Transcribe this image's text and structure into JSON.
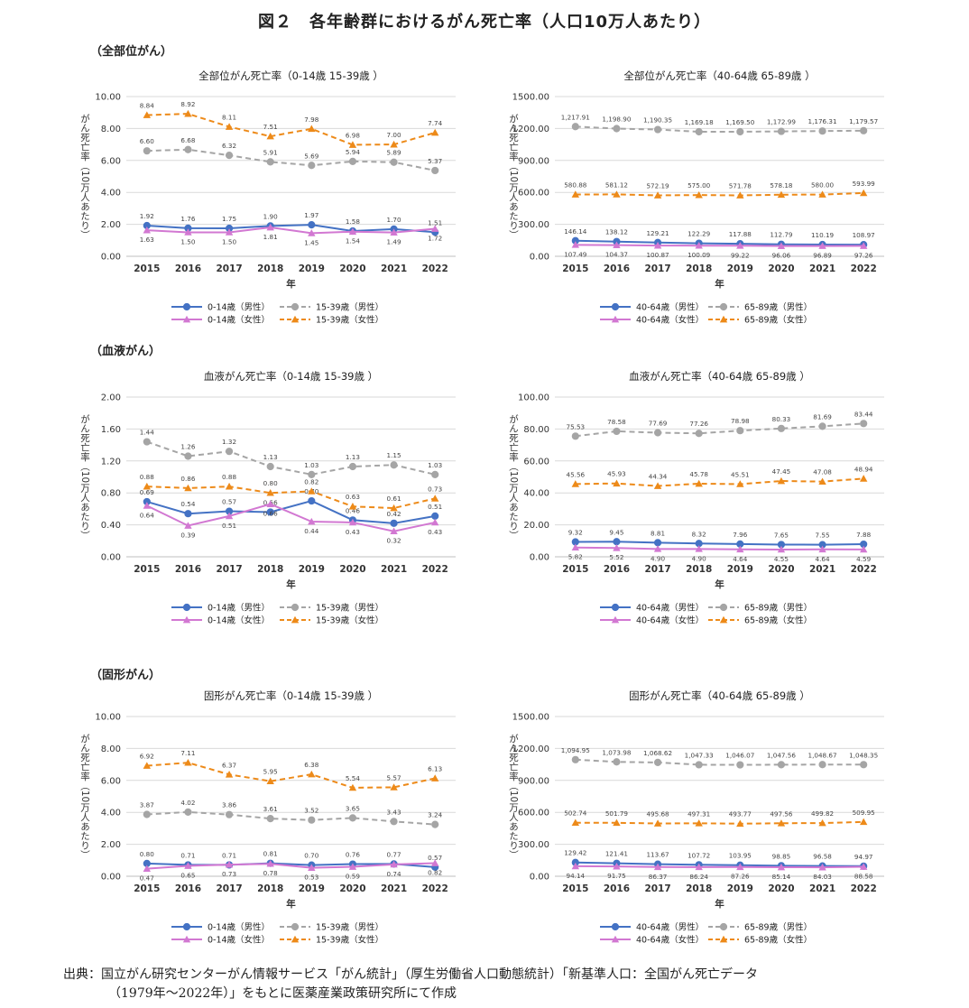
{
  "figure_title": "図２　各年齢群におけるがん死亡率（人口10万人あたり）",
  "sections": [
    "（全部位がん）",
    "（血液がん）",
    "（固形がん）"
  ],
  "source_line1": "出典：国立がん研究センターがん情報サービス「がん統計」（厚生労働省人口動態統計）「新基準人口：全国がん死亡データ",
  "source_line2": "（1979年～2022年）」をもとに医薬産業政策研究所にて作成",
  "chart_data": [
    {
      "type": "line",
      "title": "全部位がん死亡率（0-14歳 15-39歳 ）",
      "xlabel": "年",
      "ylabel": "がん死亡率（10万人あたり）",
      "categories": [
        "2015",
        "2016",
        "2017",
        "2018",
        "2019",
        "2020",
        "2021",
        "2022"
      ],
      "ylim": [
        0,
        10
      ],
      "yticks": [
        "0.00",
        "2.00",
        "4.00",
        "6.00",
        "8.00",
        "10.00"
      ],
      "series": [
        {
          "name": "0-14歳（男性）",
          "color": "#4472c4",
          "marker": "circle",
          "dashed": false,
          "values": [
            1.92,
            1.76,
            1.75,
            1.9,
            1.97,
            1.58,
            1.7,
            1.51
          ],
          "labels": [
            "1.92",
            "1.76",
            "1.75",
            "1.90",
            "1.97",
            "1.58",
            "1.70",
            "1.51"
          ]
        },
        {
          "name": "15-39歳（男性）",
          "color": "#a5a5a5",
          "marker": "circle",
          "dashed": true,
          "values": [
            6.6,
            6.68,
            6.32,
            5.91,
            5.69,
            5.94,
            5.89,
            5.37
          ],
          "labels": [
            "6.60",
            "6.68",
            "6.32",
            "5.91",
            "5.69",
            "5.94",
            "5.89",
            "5.37"
          ]
        },
        {
          "name": "0-14歳（女性）",
          "color": "#d278d2",
          "marker": "triangle",
          "dashed": false,
          "values": [
            1.63,
            1.5,
            1.5,
            1.81,
            1.45,
            1.54,
            1.49,
            1.72
          ],
          "labels": [
            "1.63",
            "1.50",
            "1.50",
            "1.81",
            "1.45",
            "1.54",
            "1.49",
            "1.72"
          ]
        },
        {
          "name": "15-39歳（女性）",
          "color": "#ed8a19",
          "marker": "triangle",
          "dashed": true,
          "values": [
            8.84,
            8.92,
            8.11,
            7.51,
            7.98,
            6.98,
            7.0,
            7.74
          ],
          "labels": [
            "8.84",
            "8.92",
            "8.11",
            "7.51",
            "7.98",
            "6.98",
            "7.00",
            "7.74"
          ]
        }
      ]
    },
    {
      "type": "line",
      "title": "全部位がん死亡率（40-64歳 65-89歳 ）",
      "xlabel": "年",
      "ylabel": "がん死亡率（10万人あたり）",
      "categories": [
        "2015",
        "2016",
        "2017",
        "2018",
        "2019",
        "2020",
        "2021",
        "2022"
      ],
      "ylim": [
        0,
        1500
      ],
      "yticks": [
        "0.00",
        "300.00",
        "600.00",
        "900.00",
        "1200.00",
        "1500.00"
      ],
      "series": [
        {
          "name": "40-64歳（男性）",
          "color": "#4472c4",
          "marker": "circle",
          "dashed": false,
          "values": [
            146.14,
            138.12,
            129.21,
            122.29,
            117.88,
            112.79,
            110.19,
            108.97
          ],
          "labels": [
            "146.14",
            "138.12",
            "129.21",
            "122.29",
            "117.88",
            "112.79",
            "110.19",
            "108.97"
          ]
        },
        {
          "name": "65-89歳（男性）",
          "color": "#a5a5a5",
          "marker": "circle",
          "dashed": true,
          "values": [
            1217.91,
            1198.9,
            1190.35,
            1169.18,
            1169.5,
            1172.99,
            1176.31,
            1179.57
          ],
          "labels": [
            "1,217.91",
            "1,198.90",
            "1,190.35",
            "1,169.18",
            "1,169.50",
            "1,172.99",
            "1,176.31",
            "1,179.57"
          ]
        },
        {
          "name": "40-64歳（女性）",
          "color": "#d278d2",
          "marker": "triangle",
          "dashed": false,
          "values": [
            107.49,
            104.37,
            100.87,
            100.09,
            99.22,
            96.06,
            96.89,
            97.26
          ],
          "labels": [
            "107.49",
            "104.37",
            "100.87",
            "100.09",
            "99.22",
            "96.06",
            "96.89",
            "97.26"
          ]
        },
        {
          "name": "65-89歳（女性）",
          "color": "#ed8a19",
          "marker": "triangle",
          "dashed": true,
          "values": [
            580.88,
            581.12,
            572.19,
            575.0,
            571.78,
            578.18,
            580.0,
            593.99
          ],
          "labels": [
            "580.88",
            "581.12",
            "572.19",
            "575.00",
            "571.78",
            "578.18",
            "580.00",
            "593.99"
          ]
        }
      ]
    },
    {
      "type": "line",
      "title": "血液がん死亡率（0-14歳 15-39歳 ）",
      "xlabel": "年",
      "ylabel": "がん死亡率（10万人あたり）",
      "categories": [
        "2015",
        "2016",
        "2017",
        "2018",
        "2019",
        "2020",
        "2021",
        "2022"
      ],
      "ylim": [
        0,
        2
      ],
      "yticks": [
        "0.00",
        "0.40",
        "0.80",
        "1.20",
        "1.60",
        "2.00"
      ],
      "series": [
        {
          "name": "0-14歳（男性）",
          "color": "#4472c4",
          "marker": "circle",
          "dashed": false,
          "values": [
            0.69,
            0.54,
            0.57,
            0.56,
            0.7,
            0.46,
            0.42,
            0.51
          ],
          "labels": [
            "0.69",
            "0.54",
            "0.57",
            "0.56",
            "0.70",
            "0.46",
            "0.42",
            "0.51"
          ]
        },
        {
          "name": "15-39歳（男性）",
          "color": "#a5a5a5",
          "marker": "circle",
          "dashed": true,
          "values": [
            1.44,
            1.26,
            1.32,
            1.13,
            1.03,
            1.13,
            1.15,
            1.03
          ],
          "labels": [
            "1.44",
            "1.26",
            "1.32",
            "1.13",
            "1.03",
            "1.13",
            "1.15",
            "1.03"
          ]
        },
        {
          "name": "0-14歳（女性）",
          "color": "#d278d2",
          "marker": "triangle",
          "dashed": false,
          "values": [
            0.64,
            0.39,
            0.51,
            0.66,
            0.44,
            0.43,
            0.32,
            0.43
          ],
          "labels": [
            "0.64",
            "0.39",
            "0.51",
            "0.66",
            "0.44",
            "0.43",
            "0.32",
            "0.43"
          ]
        },
        {
          "name": "15-39歳（女性）",
          "color": "#ed8a19",
          "marker": "triangle",
          "dashed": true,
          "values": [
            0.88,
            0.86,
            0.88,
            0.8,
            0.82,
            0.63,
            0.61,
            0.73
          ],
          "labels": [
            "0.88",
            "0.86",
            "0.88",
            "0.80",
            "0.82",
            "0.63",
            "0.61",
            "0.73"
          ]
        }
      ]
    },
    {
      "type": "line",
      "title": "血液がん死亡率（40-64歳 65-89歳 ）",
      "xlabel": "年",
      "ylabel": "がん死亡率（10万人あたり）",
      "categories": [
        "2015",
        "2016",
        "2017",
        "2018",
        "2019",
        "2020",
        "2021",
        "2022"
      ],
      "ylim": [
        0,
        100
      ],
      "yticks": [
        "0.00",
        "20.00",
        "40.00",
        "60.00",
        "80.00",
        "100.00"
      ],
      "series": [
        {
          "name": "40-64歳（男性）",
          "color": "#4472c4",
          "marker": "circle",
          "dashed": false,
          "values": [
            9.32,
            9.45,
            8.81,
            8.32,
            7.96,
            7.65,
            7.55,
            7.88
          ],
          "labels": [
            "9.32",
            "9.45",
            "8.81",
            "8.32",
            "7.96",
            "7.65",
            "7.55",
            "7.88"
          ]
        },
        {
          "name": "65-89歳（男性）",
          "color": "#a5a5a5",
          "marker": "circle",
          "dashed": true,
          "values": [
            75.53,
            78.58,
            77.69,
            77.26,
            78.98,
            80.33,
            81.69,
            83.44
          ],
          "labels": [
            "75.53",
            "78.58",
            "77.69",
            "77.26",
            "78.98",
            "80.33",
            "81.69",
            "83.44"
          ]
        },
        {
          "name": "40-64歳（女性）",
          "color": "#d278d2",
          "marker": "triangle",
          "dashed": false,
          "values": [
            5.82,
            5.52,
            4.9,
            4.9,
            4.64,
            4.55,
            4.64,
            4.59
          ],
          "labels": [
            "5.82",
            "5.52",
            "4.90",
            "4.90",
            "4.64",
            "4.55",
            "4.64",
            "4.59"
          ]
        },
        {
          "name": "65-89歳（女性）",
          "color": "#ed8a19",
          "marker": "triangle",
          "dashed": true,
          "values": [
            45.56,
            45.93,
            44.34,
            45.78,
            45.51,
            47.45,
            47.08,
            48.94
          ],
          "labels": [
            "45.56",
            "45.93",
            "44.34",
            "45.78",
            "45.51",
            "47.45",
            "47.08",
            "48.94"
          ]
        }
      ]
    },
    {
      "type": "line",
      "title": "固形がん死亡率（0-14歳 15-39歳 ）",
      "xlabel": "年",
      "ylabel": "がん死亡率（10万人あたり）",
      "categories": [
        "2015",
        "2016",
        "2017",
        "2018",
        "2019",
        "2020",
        "2021",
        "2022"
      ],
      "ylim": [
        0,
        10
      ],
      "yticks": [
        "0.00",
        "2.00",
        "4.00",
        "6.00",
        "8.00",
        "10.00"
      ],
      "series": [
        {
          "name": "0-14歳（男性）",
          "color": "#4472c4",
          "marker": "circle",
          "dashed": false,
          "values": [
            0.8,
            0.71,
            0.71,
            0.81,
            0.7,
            0.76,
            0.77,
            0.57
          ],
          "labels": [
            "0.80",
            "0.71",
            "0.71",
            "0.81",
            "0.70",
            "0.76",
            "0.77",
            "0.57"
          ]
        },
        {
          "name": "15-39歳（男性）",
          "color": "#a5a5a5",
          "marker": "circle",
          "dashed": true,
          "values": [
            3.87,
            4.02,
            3.86,
            3.61,
            3.52,
            3.65,
            3.43,
            3.24
          ],
          "labels": [
            "3.87",
            "4.02",
            "3.86",
            "3.61",
            "3.52",
            "3.65",
            "3.43",
            "3.24"
          ]
        },
        {
          "name": "0-14歳（女性）",
          "color": "#d278d2",
          "marker": "triangle",
          "dashed": false,
          "values": [
            0.47,
            0.65,
            0.73,
            0.78,
            0.53,
            0.59,
            0.74,
            0.82
          ],
          "labels": [
            "0.47",
            "0.65",
            "0.73",
            "0.78",
            "0.53",
            "0.59",
            "0.74",
            "0.82"
          ]
        },
        {
          "name": "15-39歳（女性）",
          "color": "#ed8a19",
          "marker": "triangle",
          "dashed": true,
          "values": [
            6.92,
            7.11,
            6.37,
            5.95,
            6.38,
            5.54,
            5.57,
            6.13
          ],
          "labels": [
            "6.92",
            "7.11",
            "6.37",
            "5.95",
            "6.38",
            "5.54",
            "5.57",
            "6.13"
          ]
        }
      ]
    },
    {
      "type": "line",
      "title": "固形がん死亡率（40-64歳 65-89歳 ）",
      "xlabel": "年",
      "ylabel": "がん死亡率（10万人あたり）",
      "categories": [
        "2015",
        "2016",
        "2017",
        "2018",
        "2019",
        "2020",
        "2021",
        "2022"
      ],
      "ylim": [
        0,
        1500
      ],
      "yticks": [
        "0.00",
        "300.00",
        "600.00",
        "900.00",
        "1200.00",
        "1500.00"
      ],
      "series": [
        {
          "name": "40-64歳（男性）",
          "color": "#4472c4",
          "marker": "circle",
          "dashed": false,
          "values": [
            129.42,
            121.41,
            113.67,
            107.72,
            103.95,
            98.85,
            96.58,
            94.97
          ],
          "labels": [
            "129.42",
            "121.41",
            "113.67",
            "107.72",
            "103.95",
            "98.85",
            "96.58",
            "94.97"
          ]
        },
        {
          "name": "65-89歳（男性）",
          "color": "#a5a5a5",
          "marker": "circle",
          "dashed": true,
          "values": [
            1094.95,
            1073.98,
            1068.62,
            1047.33,
            1046.07,
            1047.56,
            1048.67,
            1048.35
          ],
          "labels": [
            "1,094.95",
            "1,073.98",
            "1,068.62",
            "1,047.33",
            "1,046.07",
            "1,047.56",
            "1,048.67",
            "1,048.35"
          ]
        },
        {
          "name": "40-64歳（女性）",
          "color": "#d278d2",
          "marker": "triangle",
          "dashed": false,
          "values": [
            94.14,
            91.75,
            86.37,
            86.24,
            87.26,
            85.14,
            84.03,
            88.58
          ],
          "labels": [
            "94.14",
            "91.75",
            "86.37",
            "86.24",
            "87.26",
            "85.14",
            "84.03",
            "88.58"
          ]
        },
        {
          "name": "65-89歳（女性）",
          "color": "#ed8a19",
          "marker": "triangle",
          "dashed": true,
          "values": [
            502.74,
            501.79,
            495.68,
            497.31,
            493.77,
            497.56,
            499.82,
            509.95
          ],
          "labels": [
            "502.74",
            "501.79",
            "495.68",
            "497.31",
            "493.77",
            "497.56",
            "499.82",
            "509.95"
          ]
        }
      ]
    }
  ]
}
